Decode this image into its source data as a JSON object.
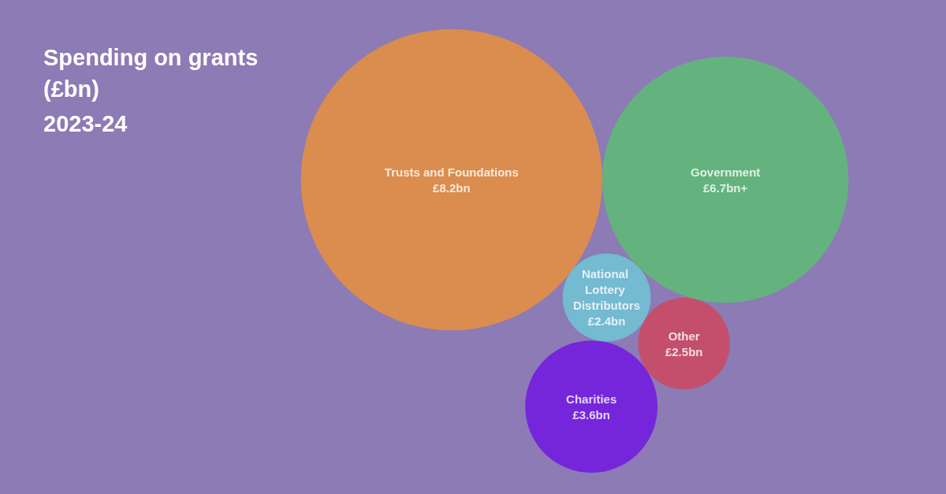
{
  "chart_data": {
    "type": "other",
    "title": "Spending on grants (£bn)",
    "subtitle": "2023-24",
    "categories": [
      "Trusts and Foundations",
      "Government",
      "National Lottery Distributors",
      "Other",
      "Charities"
    ],
    "values": [
      8.2,
      6.7,
      2.4,
      2.5,
      3.6
    ],
    "value_labels": [
      "£8.2bn",
      "£6.7bn+",
      "£2.4bn",
      "£2.5bn",
      "£3.6bn"
    ],
    "colors": [
      "#ee9235",
      "#5ac272",
      "#6ecad8",
      "#d1455a",
      "#7012e3"
    ]
  }
}
